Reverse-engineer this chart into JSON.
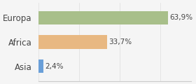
{
  "categories": [
    "Asia",
    "Africa",
    "Europa"
  ],
  "values": [
    2.4,
    33.7,
    63.9
  ],
  "labels": [
    "2,4%",
    "33,7%",
    "63,9%"
  ],
  "bar_colors": [
    "#6a9fd8",
    "#e8b882",
    "#a8bf8a"
  ],
  "background_color": "#f5f5f5",
  "xlim": [
    0,
    75
  ],
  "figsize": [
    2.8,
    1.2
  ],
  "dpi": 100
}
